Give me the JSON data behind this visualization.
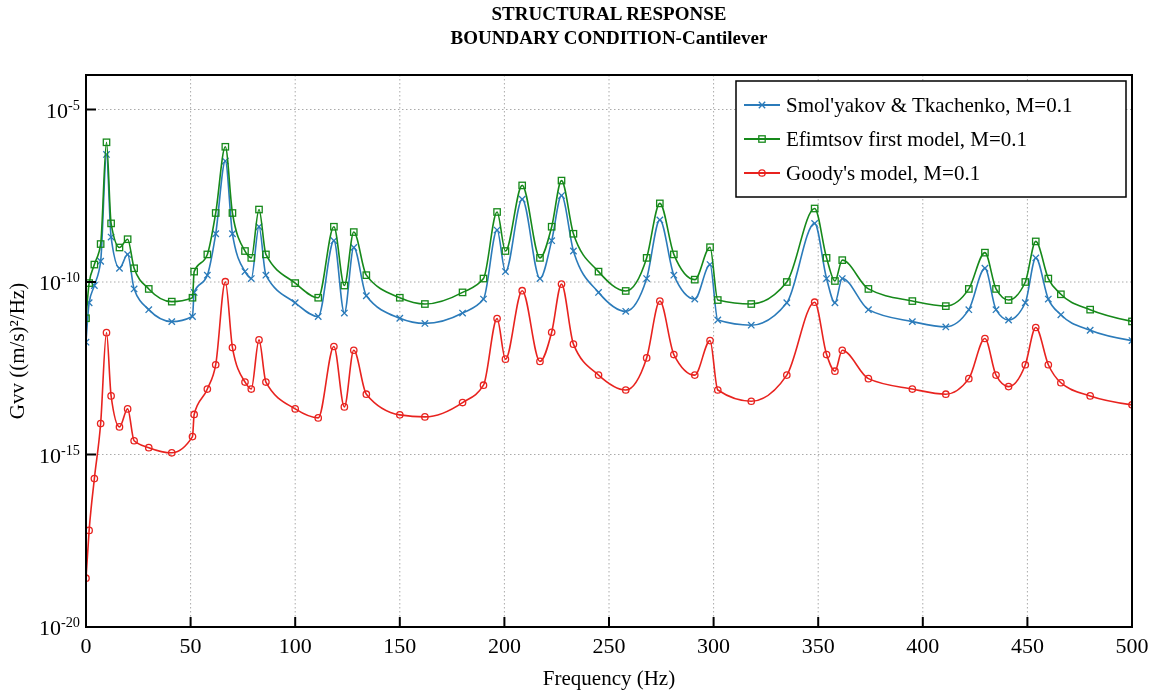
{
  "chart_data": {
    "type": "line",
    "title": "STRUCTURAL RESPONSE",
    "subtitle": "BOUNDARY CONDITION-Cantilever",
    "xlabel": "Frequency (Hz)",
    "ylabel": "Gvv ((m/s)²/Hz)",
    "x": [
      0,
      1.5,
      4,
      7,
      9.8,
      12,
      16,
      19.9,
      23,
      30,
      41,
      50.9,
      51.7,
      58,
      62,
      66.6,
      70,
      76,
      79,
      82.7,
      86,
      100,
      111,
      118.5,
      123.5,
      128,
      134,
      150,
      162,
      180,
      190,
      196.5,
      200.5,
      208.5,
      217,
      222.6,
      227.3,
      233,
      245,
      258,
      268,
      274.3,
      281,
      291,
      298.3,
      302,
      318,
      335,
      348.3,
      354,
      358,
      361.5,
      374,
      395,
      411,
      422,
      429.7,
      435,
      441,
      449,
      454,
      460,
      466,
      480,
      500
    ],
    "series": [
      {
        "name": "Smol'yakov & Tkachenko, M=0.1",
        "color": "#2b7bba",
        "marker": "cross",
        "values": [
          1.8e-12,
          2.5e-11,
          7.9e-11,
          4e-10,
          5e-07,
          2e-09,
          2.5e-10,
          6.3e-10,
          6.3e-11,
          1.58e-11,
          7.1e-12,
          1e-11,
          5e-11,
          1.58e-10,
          2.5e-09,
          3.2e-07,
          2.5e-09,
          2e-10,
          1.26e-10,
          4e-09,
          1.58e-10,
          2.5e-11,
          1e-11,
          1.58e-09,
          1.26e-11,
          1e-09,
          4e-11,
          8.9e-12,
          6.3e-12,
          1.26e-11,
          3.2e-11,
          3.2e-09,
          2e-10,
          2.5e-08,
          1.26e-10,
          1.58e-09,
          3.2e-08,
          7.9e-10,
          5e-11,
          1.41e-11,
          1.26e-10,
          6.3e-09,
          1.58e-10,
          3.2e-11,
          3.2e-10,
          7.9e-12,
          5.6e-12,
          2.5e-11,
          5e-09,
          1.26e-10,
          2.5e-11,
          1.26e-10,
          1.58e-11,
          7.1e-12,
          5e-12,
          1.58e-11,
          2.5e-10,
          1.58e-11,
          7.9e-12,
          2.5e-11,
          5e-10,
          3.2e-11,
          1.12e-11,
          4e-12,
          2e-12
        ]
      },
      {
        "name": "Efimtsov first model, M=0.1",
        "color": "#16891a",
        "marker": "square",
        "values": [
          8.9e-12,
          9.3e-11,
          3.2e-10,
          1.26e-09,
          1.12e-06,
          5e-09,
          1e-09,
          1.74e-09,
          2.5e-10,
          6.3e-11,
          2.7e-11,
          3.5e-11,
          2e-10,
          6.3e-10,
          1e-08,
          8.3e-07,
          1e-08,
          7.9e-10,
          5e-10,
          1.26e-08,
          6.3e-10,
          9.3e-11,
          3.5e-11,
          4e-09,
          7.9e-11,
          2.8e-09,
          1.58e-10,
          3.5e-11,
          2.3e-11,
          5e-11,
          1.26e-10,
          1.07e-08,
          7.9e-10,
          6.3e-08,
          5e-10,
          4e-09,
          8.7e-08,
          2.5e-09,
          2e-10,
          5.5e-11,
          5e-10,
          1.9e-08,
          6.3e-10,
          1.17e-10,
          1.02e-09,
          3e-11,
          2.3e-11,
          1e-10,
          1.35e-08,
          5e-10,
          1.07e-10,
          4.3e-10,
          6.3e-11,
          2.8e-11,
          2e-11,
          6.3e-11,
          7.1e-10,
          6.3e-11,
          3e-11,
          1e-10,
          1.5e-09,
          1.26e-10,
          4.4e-11,
          1.58e-11,
          7.2e-12
        ]
      },
      {
        "name": "Goody's model, M=0.1",
        "color": "#e8231f",
        "marker": "circle",
        "values": [
          2.6e-19,
          6.3e-18,
          2e-16,
          7.9e-15,
          3.4e-12,
          5e-14,
          6.3e-15,
          2.1e-14,
          2.5e-15,
          1.58e-15,
          1.12e-15,
          3.3e-15,
          1.45e-14,
          7.9e-14,
          4e-13,
          1.02e-10,
          1.26e-12,
          1.26e-13,
          7.9e-14,
          2.1e-12,
          1.26e-13,
          2.1e-14,
          1.15e-14,
          1.35e-12,
          2.4e-14,
          1.05e-12,
          5.6e-14,
          1.41e-14,
          1.23e-14,
          3.2e-14,
          1.02e-13,
          8.7e-12,
          5.8e-13,
          5.6e-11,
          5e-13,
          3.5e-12,
          8.7e-11,
          1.58e-12,
          2e-13,
          7.4e-14,
          6.3e-13,
          2.8e-11,
          7.9e-13,
          2e-13,
          2e-12,
          7.4e-14,
          3.5e-14,
          2e-13,
          2.6e-11,
          7.9e-13,
          2.6e-13,
          1.05e-12,
          1.58e-13,
          7.9e-14,
          5.6e-14,
          1.58e-13,
          2.3e-12,
          2e-13,
          9.3e-14,
          4e-13,
          4.8e-12,
          4e-13,
          1.2e-13,
          5e-14,
          2.75e-14
        ]
      }
    ],
    "xlim": [
      0,
      500
    ],
    "xticks": [
      0,
      50,
      100,
      150,
      200,
      250,
      300,
      350,
      400,
      450,
      500
    ],
    "ylim": [
      1e-20,
      0.0001
    ],
    "log": true,
    "yticks": [
      {
        "value": 1e-20,
        "label": "10$^{-20}$"
      },
      {
        "value": 1e-15,
        "label": "10$^{-15}$"
      },
      {
        "value": 1e-10,
        "label": "10$^{-10}$"
      },
      {
        "value": 1e-05,
        "label": "10$^{-5}$"
      }
    ],
    "grid": true,
    "legend": "top right",
    "line_style": "solid"
  }
}
